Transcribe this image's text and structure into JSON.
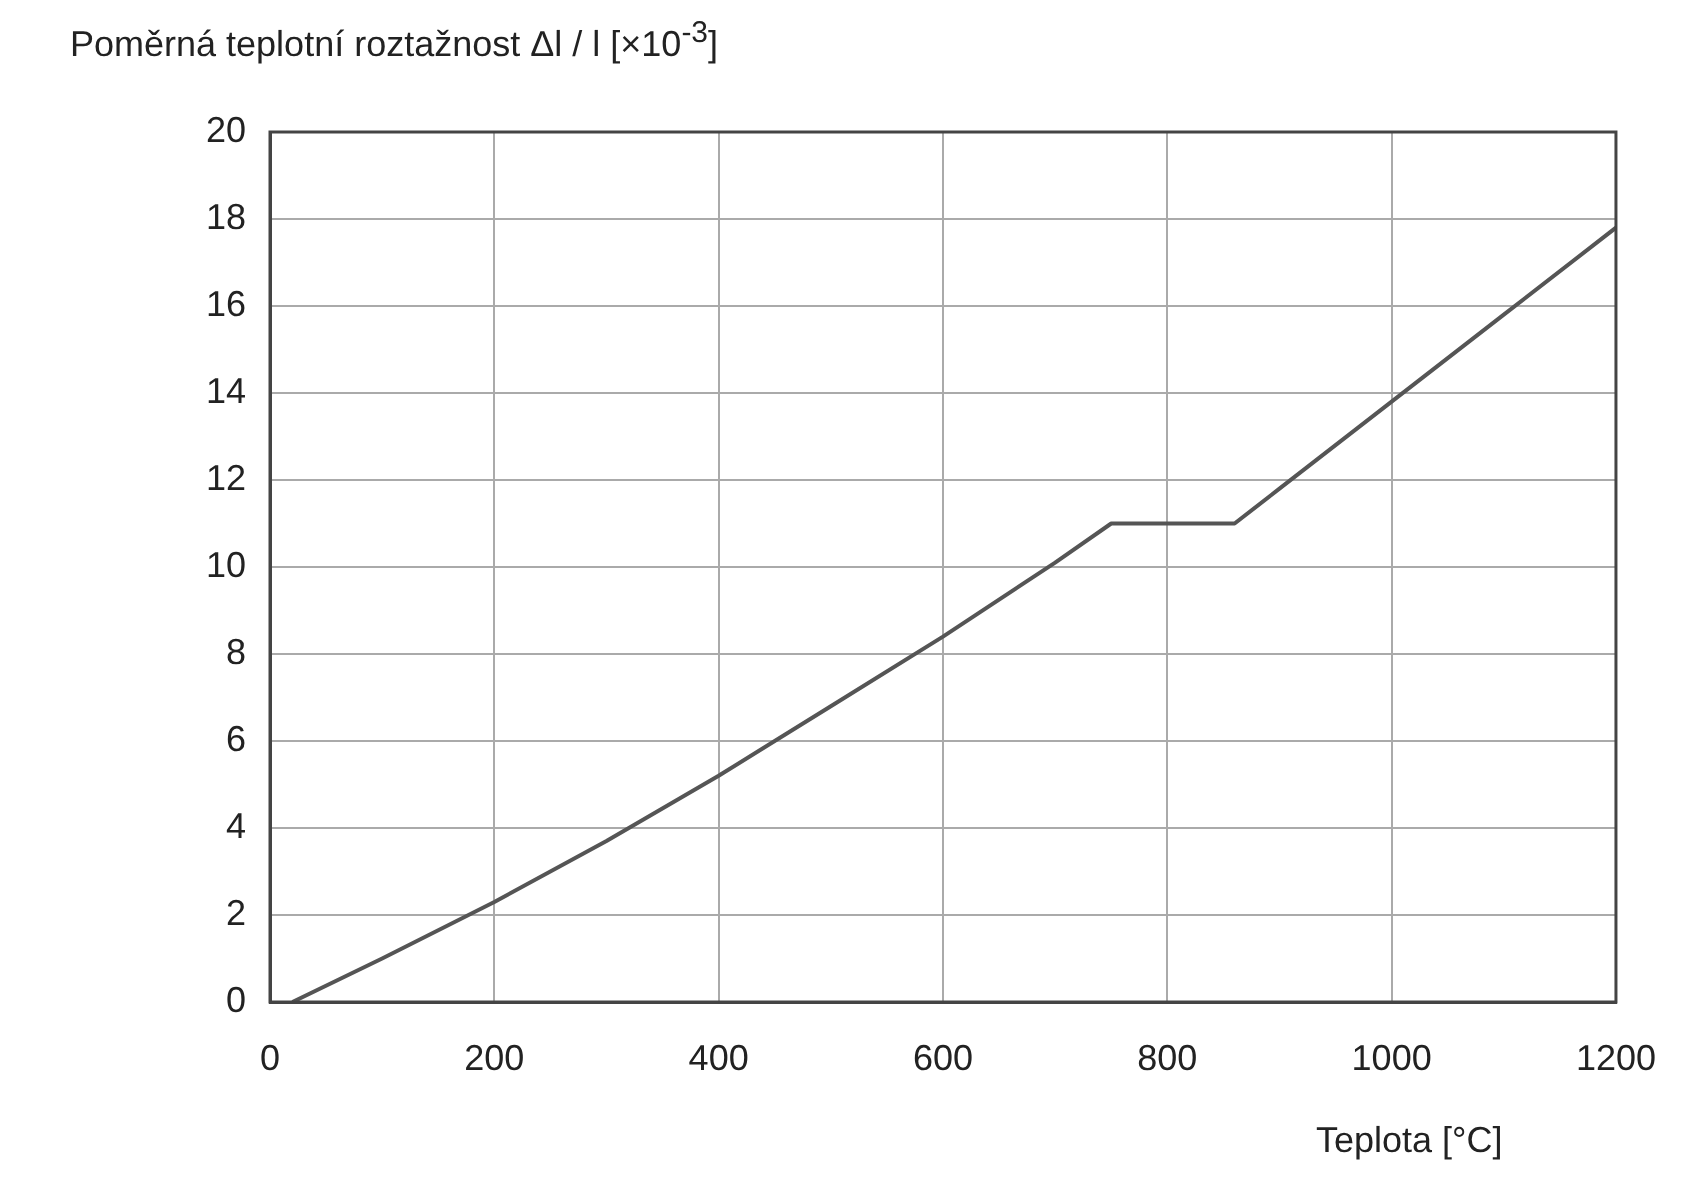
{
  "chart_data": {
    "type": "line",
    "xlabel": "Teplota [°C]",
    "ylabel": "Poměrná teplotní roztažnost    Δl / l [×10$^{-3}$]",
    "x": [
      20,
      100,
      200,
      300,
      400,
      500,
      600,
      700,
      750,
      860,
      900,
      1000,
      1100,
      1200
    ],
    "values": [
      0,
      1,
      2.3,
      3.7,
      5.2,
      6.8,
      8.4,
      10.1,
      11,
      11,
      11.8,
      13.8,
      15.8,
      17.8
    ],
    "color": "#555555",
    "xlim": [
      0,
      1200
    ],
    "xticks": [
      0,
      200,
      400,
      600,
      800,
      1000,
      1200
    ],
    "ylim": [
      0,
      20
    ],
    "yticks": [
      0,
      2,
      4,
      6,
      8,
      10,
      12,
      14,
      16,
      18,
      20
    ],
    "grid": true,
    "legend": false,
    "marker": "none",
    "line_style": "solid"
  }
}
